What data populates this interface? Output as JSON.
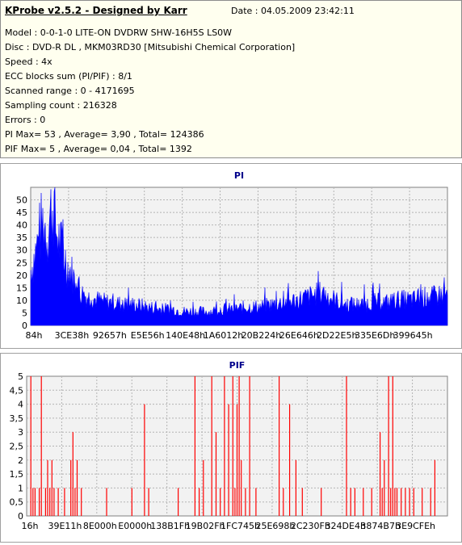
{
  "header": {
    "title": "KProbe v2.5.2 - Designed by Karr",
    "date": "Date : 04.05.2009 23:42:11",
    "lines": [
      "Model : 0-0-1-0 LITE-ON DVDRW SHW-16H5S  LS0W",
      "Disc : DVD-R DL , MKM03RD30 [Mitsubishi Chemical Corporation]",
      "Speed : 4x",
      "ECC blocks sum (PI/PIF) : 8/1",
      "Scanned range : 0 - 4171695",
      "Sampling count : 216328",
      "Errors : 0",
      "PI Max= 53 , Average= 3,90 , Total= 124386",
      "PIF Max= 5 , Average= 0,04 , Total= 1392"
    ]
  },
  "colors": {
    "pi_series": "#0000ff",
    "pif_series": "#ff0000",
    "title": "#00008b",
    "grid": "#b4b4b4",
    "plot_bg": "#f2f2f2"
  },
  "chart_data": [
    {
      "type": "area",
      "title": "PI",
      "xlabel": "",
      "ylabel": "",
      "ylim": [
        0,
        55
      ],
      "yticks": [
        0,
        5,
        10,
        15,
        20,
        25,
        30,
        35,
        40,
        45,
        50
      ],
      "x_tick_labels": [
        "84h",
        "3CE38h",
        "92657h",
        "E5E56h",
        "140E48h",
        "1A6012h",
        "20B224h",
        "26E646h",
        "2D22E5h",
        "335E6Dh",
        "399645h"
      ],
      "grid": true,
      "profile": [
        [
          0,
          24
        ],
        [
          0.01,
          30
        ],
        [
          0.02,
          38
        ],
        [
          0.03,
          45
        ],
        [
          0.04,
          40
        ],
        [
          0.05,
          50
        ],
        [
          0.055,
          53
        ],
        [
          0.06,
          42
        ],
        [
          0.07,
          35
        ],
        [
          0.08,
          30
        ],
        [
          0.09,
          25
        ],
        [
          0.1,
          22
        ],
        [
          0.11,
          17
        ],
        [
          0.12,
          14
        ],
        [
          0.14,
          12
        ],
        [
          0.16,
          11
        ],
        [
          0.18,
          10
        ],
        [
          0.2,
          10
        ],
        [
          0.22,
          9
        ],
        [
          0.25,
          9
        ],
        [
          0.28,
          8
        ],
        [
          0.31,
          7
        ],
        [
          0.34,
          7
        ],
        [
          0.37,
          6
        ],
        [
          0.4,
          6
        ],
        [
          0.43,
          6
        ],
        [
          0.46,
          7
        ],
        [
          0.49,
          7
        ],
        [
          0.52,
          8
        ],
        [
          0.55,
          8
        ],
        [
          0.58,
          9
        ],
        [
          0.61,
          10
        ],
        [
          0.64,
          11
        ],
        [
          0.66,
          12
        ],
        [
          0.68,
          13
        ],
        [
          0.7,
          14
        ],
        [
          0.72,
          12
        ],
        [
          0.74,
          10
        ],
        [
          0.76,
          9
        ],
        [
          0.78,
          9
        ],
        [
          0.8,
          9
        ],
        [
          0.82,
          10
        ],
        [
          0.84,
          10
        ],
        [
          0.86,
          10
        ],
        [
          0.88,
          11
        ],
        [
          0.9,
          11
        ],
        [
          0.92,
          11
        ],
        [
          0.94,
          12
        ],
        [
          0.96,
          12
        ],
        [
          0.98,
          13
        ],
        [
          1.0,
          13
        ]
      ]
    },
    {
      "type": "bar",
      "title": "PIF",
      "xlabel": "",
      "ylabel": "",
      "ylim": [
        0,
        5
      ],
      "yticks": [
        0,
        0.5,
        1,
        1.5,
        2,
        2.5,
        3,
        3.5,
        4,
        4.5,
        5
      ],
      "ytick_labels": [
        "0",
        "0,5",
        "1",
        "1,5",
        "2",
        "2,5",
        "3",
        "3,5",
        "4",
        "4,5",
        "5"
      ],
      "x_tick_labels": [
        "16h",
        "39E11h",
        "8E000h",
        "E0000h",
        "138B1Fh",
        "19B02Fh",
        "1FC745h",
        "25E698h",
        "2C230Fh",
        "324DE4h",
        "3874B7h",
        "3E9CFEh"
      ],
      "grid": true,
      "spikes": [
        [
          0.01,
          5
        ],
        [
          0.015,
          1
        ],
        [
          0.02,
          1
        ],
        [
          0.03,
          1
        ],
        [
          0.035,
          5
        ],
        [
          0.045,
          1
        ],
        [
          0.05,
          2
        ],
        [
          0.055,
          1
        ],
        [
          0.06,
          2
        ],
        [
          0.065,
          1
        ],
        [
          0.075,
          1
        ],
        [
          0.09,
          1
        ],
        [
          0.105,
          2
        ],
        [
          0.11,
          3
        ],
        [
          0.115,
          1
        ],
        [
          0.12,
          2
        ],
        [
          0.13,
          1
        ],
        [
          0.19,
          1
        ],
        [
          0.25,
          1
        ],
        [
          0.28,
          4
        ],
        [
          0.29,
          1
        ],
        [
          0.36,
          1
        ],
        [
          0.4,
          5
        ],
        [
          0.41,
          1
        ],
        [
          0.42,
          2
        ],
        [
          0.44,
          5
        ],
        [
          0.45,
          3
        ],
        [
          0.46,
          1
        ],
        [
          0.47,
          5
        ],
        [
          0.48,
          4
        ],
        [
          0.49,
          5
        ],
        [
          0.495,
          1
        ],
        [
          0.5,
          4
        ],
        [
          0.505,
          5
        ],
        [
          0.51,
          2
        ],
        [
          0.52,
          1
        ],
        [
          0.53,
          5
        ],
        [
          0.545,
          1
        ],
        [
          0.6,
          5
        ],
        [
          0.61,
          1
        ],
        [
          0.625,
          4
        ],
        [
          0.64,
          2
        ],
        [
          0.655,
          1
        ],
        [
          0.7,
          1
        ],
        [
          0.76,
          5
        ],
        [
          0.77,
          1
        ],
        [
          0.78,
          1
        ],
        [
          0.8,
          1
        ],
        [
          0.82,
          1
        ],
        [
          0.84,
          3
        ],
        [
          0.845,
          1
        ],
        [
          0.85,
          2
        ],
        [
          0.86,
          5
        ],
        [
          0.865,
          1
        ],
        [
          0.87,
          5
        ],
        [
          0.875,
          1
        ],
        [
          0.88,
          1
        ],
        [
          0.89,
          1
        ],
        [
          0.9,
          1
        ],
        [
          0.91,
          1
        ],
        [
          0.92,
          1
        ],
        [
          0.94,
          1
        ],
        [
          0.96,
          1
        ],
        [
          0.97,
          2
        ]
      ]
    }
  ]
}
